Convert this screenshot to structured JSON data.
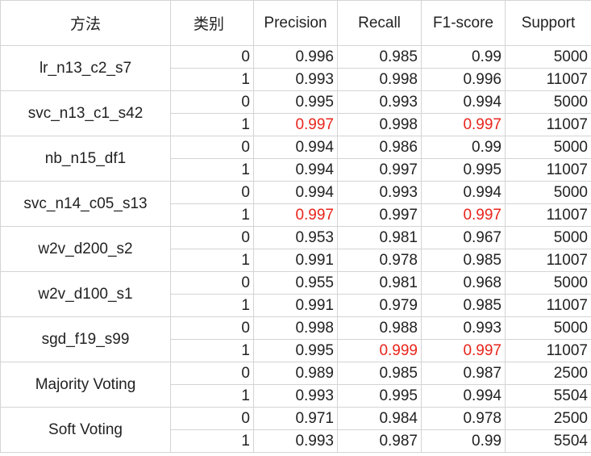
{
  "headers": [
    "方法",
    "类别",
    "Precision",
    "Recall",
    "F1-score",
    "Support"
  ],
  "models": [
    {
      "name": "lr_n13_c2_s7",
      "rows": [
        {
          "cls": "0",
          "p": "0.996",
          "r": "0.985",
          "f": "0.99",
          "s": "5000"
        },
        {
          "cls": "1",
          "p": "0.993",
          "r": "0.998",
          "f": "0.996",
          "s": "11007"
        }
      ]
    },
    {
      "name": "svc_n13_c1_s42",
      "rows": [
        {
          "cls": "0",
          "p": "0.995",
          "r": "0.993",
          "f": "0.994",
          "s": "5000",
          "bold": [
            "r",
            "f"
          ]
        },
        {
          "cls": "1",
          "p": "0.997",
          "r": "0.998",
          "f": "0.997",
          "s": "11007",
          "red": [
            "p",
            "f"
          ]
        }
      ]
    },
    {
      "name": "nb_n15_df1",
      "rows": [
        {
          "cls": "0",
          "p": "0.994",
          "r": "0.986",
          "f": "0.99",
          "s": "5000"
        },
        {
          "cls": "1",
          "p": "0.994",
          "r": "0.997",
          "f": "0.995",
          "s": "11007"
        }
      ]
    },
    {
      "name": "svc_n14_c05_s13",
      "rows": [
        {
          "cls": "0",
          "p": "0.994",
          "r": "0.993",
          "f": "0.994",
          "s": "5000",
          "bold": [
            "r",
            "f"
          ]
        },
        {
          "cls": "1",
          "p": "0.997",
          "r": "0.997",
          "f": "0.997",
          "s": "11007",
          "red": [
            "p",
            "f"
          ]
        }
      ]
    },
    {
      "name": "w2v_d200_s2",
      "rows": [
        {
          "cls": "0",
          "p": "0.953",
          "r": "0.981",
          "f": "0.967",
          "s": "5000"
        },
        {
          "cls": "1",
          "p": "0.991",
          "r": "0.978",
          "f": "0.985",
          "s": "11007"
        }
      ]
    },
    {
      "name": "w2v_d100_s1",
      "rows": [
        {
          "cls": "0",
          "p": "0.955",
          "r": "0.981",
          "f": "0.968",
          "s": "5000"
        },
        {
          "cls": "1",
          "p": "0.991",
          "r": "0.979",
          "f": "0.985",
          "s": "11007"
        }
      ]
    },
    {
      "name": "sgd_f19_s99",
      "rows": [
        {
          "cls": "0",
          "p": "0.998",
          "r": "0.988",
          "f": "0.993",
          "s": "5000",
          "bold": [
            "p"
          ]
        },
        {
          "cls": "1",
          "p": "0.995",
          "r": "0.999",
          "f": "0.997",
          "s": "11007",
          "red": [
            "r",
            "f"
          ]
        }
      ]
    },
    {
      "name": "Majority Voting",
      "rows": [
        {
          "cls": "0",
          "p": "0.989",
          "r": "0.985",
          "f": "0.987",
          "s": "2500"
        },
        {
          "cls": "1",
          "p": "0.993",
          "r": "0.995",
          "f": "0.994",
          "s": "5504"
        }
      ]
    },
    {
      "name": "Soft Voting",
      "rows": [
        {
          "cls": "0",
          "p": "0.971",
          "r": "0.984",
          "f": "0.978",
          "s": "2500"
        },
        {
          "cls": "1",
          "p": "0.993",
          "r": "0.987",
          "f": "0.99",
          "s": "5504"
        }
      ]
    }
  ],
  "colors": {
    "highlight_red": "#e8251c",
    "grid_line": "#d4d4d4",
    "text": "#222222"
  }
}
